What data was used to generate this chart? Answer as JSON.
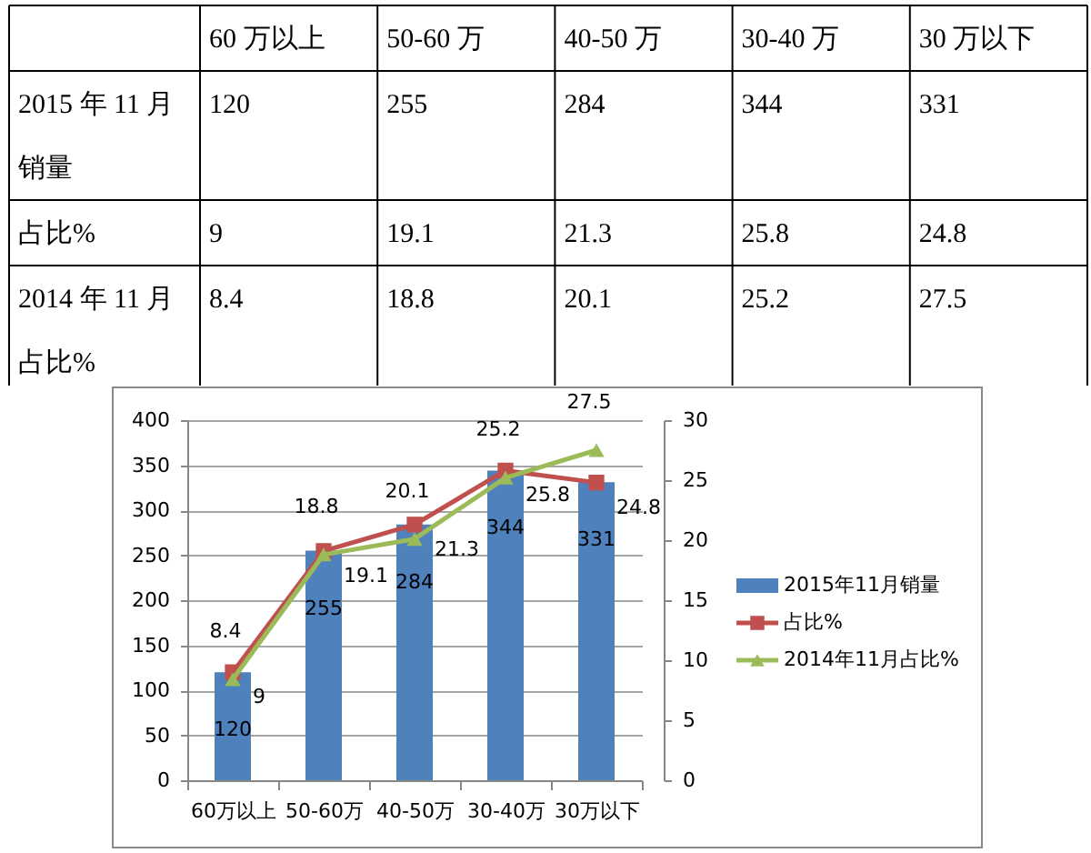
{
  "chart_data": [
    {
      "type": "other",
      "categories": [
        "60 万以上",
        "50-60 万",
        "40-50 万",
        "30-40 万",
        "30 万以下"
      ],
      "series": [
        {
          "name": "2015 年 11 月销量",
          "values": [
            120,
            255,
            284,
            344,
            331
          ]
        },
        {
          "name": "占比%",
          "values": [
            9,
            19.1,
            21.3,
            25.8,
            24.8
          ]
        },
        {
          "name": "2014 年 11 月占比%",
          "values": [
            8.4,
            18.8,
            20.1,
            25.2,
            27.5
          ]
        }
      ],
      "data_labels": true
    },
    {
      "type": "bar",
      "categories": [
        "60万以上",
        "50-60万",
        "40-50万",
        "30-40万",
        "30万以下"
      ],
      "series": [
        {
          "name": "2015年11月销量",
          "type": "bar",
          "color": "#4f81bd",
          "values": [
            120,
            255,
            284,
            344,
            331
          ]
        },
        {
          "name": "占比%",
          "type": "line",
          "axis": "y2",
          "color": "#c0504d",
          "marker": "square",
          "values": [
            9,
            19.1,
            21.3,
            25.8,
            24.8
          ]
        },
        {
          "name": "2014年11月占比%",
          "type": "line",
          "axis": "y2",
          "color": "#9bbb59",
          "marker": "triangle",
          "values": [
            8.4,
            18.8,
            20.1,
            25.2,
            27.5
          ]
        }
      ],
      "ylim": [
        0,
        400
      ],
      "yticks": [
        0,
        50,
        100,
        150,
        200,
        250,
        300,
        350,
        400
      ],
      "y2lim": [
        0,
        30
      ],
      "y2ticks": [
        0,
        5,
        10,
        15,
        20,
        25,
        30
      ],
      "grid": "y",
      "legend": "right",
      "data_labels": true
    }
  ]
}
